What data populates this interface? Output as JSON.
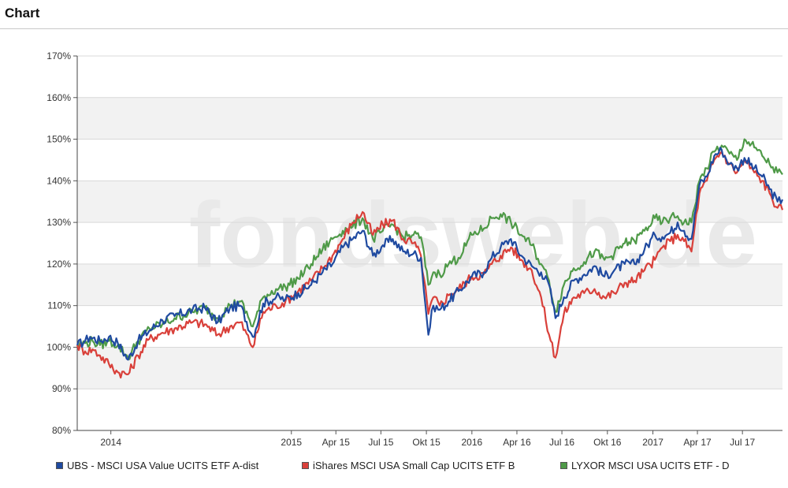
{
  "header": {
    "title": "Chart"
  },
  "watermark": "fondsweb.de",
  "chart_data": {
    "type": "line",
    "x_axis": {
      "type": "date",
      "range": [
        "2013-10-25",
        "2017-09-20"
      ],
      "ticks": [
        {
          "date": "2014-01-01",
          "label": "2014"
        },
        {
          "date": "2015-01-01",
          "label": "2015"
        },
        {
          "date": "2015-04-01",
          "label": "Apr 15"
        },
        {
          "date": "2015-07-01",
          "label": "Jul 15"
        },
        {
          "date": "2015-10-01",
          "label": "Okt 15"
        },
        {
          "date": "2016-01-01",
          "label": "2016"
        },
        {
          "date": "2016-04-01",
          "label": "Apr 16"
        },
        {
          "date": "2016-07-01",
          "label": "Jul 16"
        },
        {
          "date": "2016-10-01",
          "label": "Okt 16"
        },
        {
          "date": "2017-01-01",
          "label": "2017"
        },
        {
          "date": "2017-04-01",
          "label": "Apr 17"
        },
        {
          "date": "2017-07-01",
          "label": "Jul 17"
        }
      ]
    },
    "y_axis": {
      "ylim": [
        80,
        170
      ],
      "ticks": [
        80,
        90,
        100,
        110,
        120,
        130,
        140,
        150,
        160,
        170
      ],
      "tick_labels": [
        "80%",
        "90%",
        "100%",
        "110%",
        "120%",
        "130%",
        "140%",
        "150%",
        "160%",
        "170%"
      ]
    },
    "grid": true,
    "legend_position": "bottom",
    "series": [
      {
        "name": "UBS - MSCI USA Value UCITS ETF A-dist",
        "color": "#1f4aa0",
        "points": [
          [
            "2013-10-25",
            100.5
          ],
          [
            "2013-11-10",
            101.5
          ],
          [
            "2013-11-20",
            102.5
          ],
          [
            "2013-12-10",
            101.5
          ],
          [
            "2013-12-28",
            102.5
          ],
          [
            "2014-01-15",
            101.0
          ],
          [
            "2014-02-05",
            97.0
          ],
          [
            "2014-02-25",
            101.5
          ],
          [
            "2014-03-20",
            104.0
          ],
          [
            "2014-04-15",
            106.5
          ],
          [
            "2014-05-10",
            107.5
          ],
          [
            "2014-06-15",
            109.0
          ],
          [
            "2014-07-10",
            109.5
          ],
          [
            "2014-08-05",
            106.0
          ],
          [
            "2014-08-30",
            109.5
          ],
          [
            "2014-09-20",
            110.0
          ],
          [
            "2014-10-15",
            102.5
          ],
          [
            "2014-11-05",
            110.5
          ],
          [
            "2014-12-01",
            112.0
          ],
          [
            "2014-12-20",
            111.5
          ],
          [
            "2015-01-15",
            113.0
          ],
          [
            "2015-02-10",
            115.0
          ],
          [
            "2015-03-05",
            118.0
          ],
          [
            "2015-03-25",
            120.0
          ],
          [
            "2015-04-15",
            124.0
          ],
          [
            "2015-05-05",
            126.0
          ],
          [
            "2015-05-25",
            128.0
          ],
          [
            "2015-06-15",
            122.0
          ],
          [
            "2015-07-05",
            124.5
          ],
          [
            "2015-07-25",
            126.0
          ],
          [
            "2015-08-15",
            123.0
          ],
          [
            "2015-09-05",
            122.5
          ],
          [
            "2015-09-20",
            121.5
          ],
          [
            "2015-10-05",
            103.0
          ],
          [
            "2015-10-15",
            110.0
          ],
          [
            "2015-10-28",
            109.0
          ],
          [
            "2015-11-15",
            111.0
          ],
          [
            "2015-12-05",
            113.5
          ],
          [
            "2016-01-01",
            117.0
          ],
          [
            "2016-01-25",
            118.0
          ],
          [
            "2016-02-10",
            121.5
          ],
          [
            "2016-02-28",
            124.0
          ],
          [
            "2016-03-20",
            126.0
          ],
          [
            "2016-04-10",
            122.0
          ],
          [
            "2016-05-01",
            119.5
          ],
          [
            "2016-05-20",
            118.0
          ],
          [
            "2016-06-05",
            115.0
          ],
          [
            "2016-06-18",
            107.0
          ],
          [
            "2016-07-05",
            112.0
          ],
          [
            "2016-07-25",
            116.0
          ],
          [
            "2016-08-15",
            117.5
          ],
          [
            "2016-09-05",
            119.5
          ],
          [
            "2016-09-25",
            117.0
          ],
          [
            "2016-10-15",
            118.5
          ],
          [
            "2016-11-05",
            120.0
          ],
          [
            "2016-11-25",
            120.0
          ],
          [
            "2016-12-15",
            123.5
          ],
          [
            "2017-01-05",
            127.0
          ],
          [
            "2017-01-20",
            126.5
          ],
          [
            "2017-02-05",
            127.5
          ],
          [
            "2017-02-20",
            130.0
          ],
          [
            "2017-03-05",
            128.0
          ],
          [
            "2017-03-20",
            126.0
          ],
          [
            "2017-04-05",
            139.0
          ],
          [
            "2017-04-20",
            141.0
          ],
          [
            "2017-05-05",
            146.0
          ],
          [
            "2017-05-20",
            147.5
          ],
          [
            "2017-06-05",
            144.0
          ],
          [
            "2017-06-20",
            143.0
          ],
          [
            "2017-07-05",
            145.5
          ],
          [
            "2017-07-25",
            143.0
          ],
          [
            "2017-08-10",
            141.0
          ],
          [
            "2017-08-25",
            138.0
          ],
          [
            "2017-09-10",
            135.0
          ],
          [
            "2017-09-20",
            135.5
          ]
        ]
      },
      {
        "name": "iShares MSCI USA Small Cap UCITS ETF B",
        "color": "#d9403a",
        "points": [
          [
            "2013-10-25",
            100.5
          ],
          [
            "2013-11-10",
            99.0
          ],
          [
            "2013-11-25",
            99.5
          ],
          [
            "2013-12-10",
            98.0
          ],
          [
            "2013-12-28",
            96.0
          ],
          [
            "2014-01-15",
            94.0
          ],
          [
            "2014-02-05",
            93.5
          ],
          [
            "2014-02-25",
            98.0
          ],
          [
            "2014-03-20",
            102.0
          ],
          [
            "2014-04-15",
            103.5
          ],
          [
            "2014-05-10",
            104.5
          ],
          [
            "2014-06-15",
            106.0
          ],
          [
            "2014-07-10",
            105.5
          ],
          [
            "2014-08-05",
            103.0
          ],
          [
            "2014-08-30",
            105.0
          ],
          [
            "2014-09-20",
            106.0
          ],
          [
            "2014-10-15",
            100.0
          ],
          [
            "2014-11-05",
            108.5
          ],
          [
            "2014-12-01",
            110.0
          ],
          [
            "2014-12-20",
            111.0
          ],
          [
            "2015-01-15",
            113.5
          ],
          [
            "2015-02-10",
            116.0
          ],
          [
            "2015-03-05",
            119.0
          ],
          [
            "2015-03-25",
            122.0
          ],
          [
            "2015-04-15",
            126.0
          ],
          [
            "2015-05-05",
            130.0
          ],
          [
            "2015-05-25",
            132.5
          ],
          [
            "2015-06-15",
            127.0
          ],
          [
            "2015-07-05",
            129.5
          ],
          [
            "2015-07-25",
            130.5
          ],
          [
            "2015-08-15",
            126.0
          ],
          [
            "2015-09-05",
            125.0
          ],
          [
            "2015-09-20",
            122.0
          ],
          [
            "2015-10-05",
            108.0
          ],
          [
            "2015-10-15",
            112.0
          ],
          [
            "2015-10-28",
            110.0
          ],
          [
            "2015-11-15",
            112.5
          ],
          [
            "2015-12-05",
            114.0
          ],
          [
            "2016-01-01",
            117.0
          ],
          [
            "2016-01-25",
            117.5
          ],
          [
            "2016-02-10",
            120.0
          ],
          [
            "2016-02-28",
            122.0
          ],
          [
            "2016-03-20",
            124.0
          ],
          [
            "2016-04-10",
            121.0
          ],
          [
            "2016-05-01",
            118.5
          ],
          [
            "2016-05-20",
            112.0
          ],
          [
            "2016-06-05",
            103.0
          ],
          [
            "2016-06-18",
            97.5
          ],
          [
            "2016-07-05",
            108.0
          ],
          [
            "2016-07-25",
            112.0
          ],
          [
            "2016-08-15",
            113.0
          ],
          [
            "2016-09-05",
            114.0
          ],
          [
            "2016-09-25",
            112.0
          ],
          [
            "2016-10-15",
            113.0
          ],
          [
            "2016-11-05",
            115.5
          ],
          [
            "2016-11-25",
            116.0
          ],
          [
            "2016-12-15",
            118.5
          ],
          [
            "2017-01-05",
            121.0
          ],
          [
            "2017-01-20",
            124.0
          ],
          [
            "2017-02-05",
            125.5
          ],
          [
            "2017-02-20",
            127.0
          ],
          [
            "2017-03-05",
            125.5
          ],
          [
            "2017-03-20",
            123.0
          ],
          [
            "2017-04-05",
            137.0
          ],
          [
            "2017-04-20",
            140.0
          ],
          [
            "2017-05-05",
            145.0
          ],
          [
            "2017-05-20",
            147.0
          ],
          [
            "2017-06-05",
            144.0
          ],
          [
            "2017-06-20",
            142.0
          ],
          [
            "2017-07-05",
            145.0
          ],
          [
            "2017-07-25",
            142.0
          ],
          [
            "2017-08-10",
            140.0
          ],
          [
            "2017-08-25",
            137.0
          ],
          [
            "2017-09-10",
            133.5
          ],
          [
            "2017-09-20",
            133.0
          ]
        ]
      },
      {
        "name": "LYXOR MSCI USA UCITS ETF - D",
        "color": "#4f9a48",
        "points": [
          [
            "2013-10-25",
            100.5
          ],
          [
            "2013-11-10",
            101.0
          ],
          [
            "2013-11-25",
            101.5
          ],
          [
            "2013-12-10",
            100.5
          ],
          [
            "2013-12-28",
            101.5
          ],
          [
            "2014-01-15",
            100.5
          ],
          [
            "2014-02-05",
            97.5
          ],
          [
            "2014-02-25",
            101.5
          ],
          [
            "2014-03-20",
            104.5
          ],
          [
            "2014-04-15",
            105.5
          ],
          [
            "2014-05-10",
            107.0
          ],
          [
            "2014-06-15",
            108.5
          ],
          [
            "2014-07-10",
            109.5
          ],
          [
            "2014-08-05",
            107.0
          ],
          [
            "2014-08-30",
            110.0
          ],
          [
            "2014-09-20",
            111.0
          ],
          [
            "2014-10-15",
            105.0
          ],
          [
            "2014-11-05",
            112.0
          ],
          [
            "2014-12-01",
            114.0
          ],
          [
            "2014-12-20",
            114.5
          ],
          [
            "2015-01-15",
            116.5
          ],
          [
            "2015-02-10",
            120.0
          ],
          [
            "2015-03-05",
            123.5
          ],
          [
            "2015-03-25",
            126.0
          ],
          [
            "2015-04-15",
            128.0
          ],
          [
            "2015-05-05",
            129.0
          ],
          [
            "2015-05-25",
            131.0
          ],
          [
            "2015-06-15",
            126.0
          ],
          [
            "2015-07-05",
            128.0
          ],
          [
            "2015-07-25",
            129.5
          ],
          [
            "2015-08-15",
            126.5
          ],
          [
            "2015-09-05",
            127.0
          ],
          [
            "2015-09-20",
            126.5
          ],
          [
            "2015-10-05",
            115.0
          ],
          [
            "2015-10-15",
            118.0
          ],
          [
            "2015-10-28",
            117.5
          ],
          [
            "2015-11-15",
            120.0
          ],
          [
            "2015-12-05",
            121.5
          ],
          [
            "2016-01-01",
            127.0
          ],
          [
            "2016-01-25",
            128.5
          ],
          [
            "2016-02-10",
            131.0
          ],
          [
            "2016-02-28",
            132.0
          ],
          [
            "2016-03-20",
            130.0
          ],
          [
            "2016-04-10",
            127.0
          ],
          [
            "2016-05-01",
            124.5
          ],
          [
            "2016-05-20",
            120.0
          ],
          [
            "2016-06-05",
            116.0
          ],
          [
            "2016-06-18",
            108.5
          ],
          [
            "2016-07-05",
            115.0
          ],
          [
            "2016-07-25",
            119.0
          ],
          [
            "2016-08-15",
            120.5
          ],
          [
            "2016-09-05",
            123.0
          ],
          [
            "2016-09-25",
            121.0
          ],
          [
            "2016-10-15",
            122.5
          ],
          [
            "2016-11-05",
            125.0
          ],
          [
            "2016-11-25",
            125.5
          ],
          [
            "2016-12-15",
            128.0
          ],
          [
            "2017-01-05",
            131.0
          ],
          [
            "2017-01-20",
            130.0
          ],
          [
            "2017-02-05",
            131.0
          ],
          [
            "2017-02-20",
            131.5
          ],
          [
            "2017-03-05",
            130.0
          ],
          [
            "2017-03-20",
            130.0
          ],
          [
            "2017-04-05",
            140.0
          ],
          [
            "2017-04-20",
            143.0
          ],
          [
            "2017-05-05",
            147.0
          ],
          [
            "2017-05-20",
            148.5
          ],
          [
            "2017-06-05",
            146.5
          ],
          [
            "2017-06-20",
            145.0
          ],
          [
            "2017-07-05",
            150.0
          ],
          [
            "2017-07-25",
            148.0
          ],
          [
            "2017-08-10",
            146.0
          ],
          [
            "2017-08-25",
            144.0
          ],
          [
            "2017-09-10",
            142.0
          ],
          [
            "2017-09-20",
            141.5
          ]
        ]
      }
    ]
  }
}
